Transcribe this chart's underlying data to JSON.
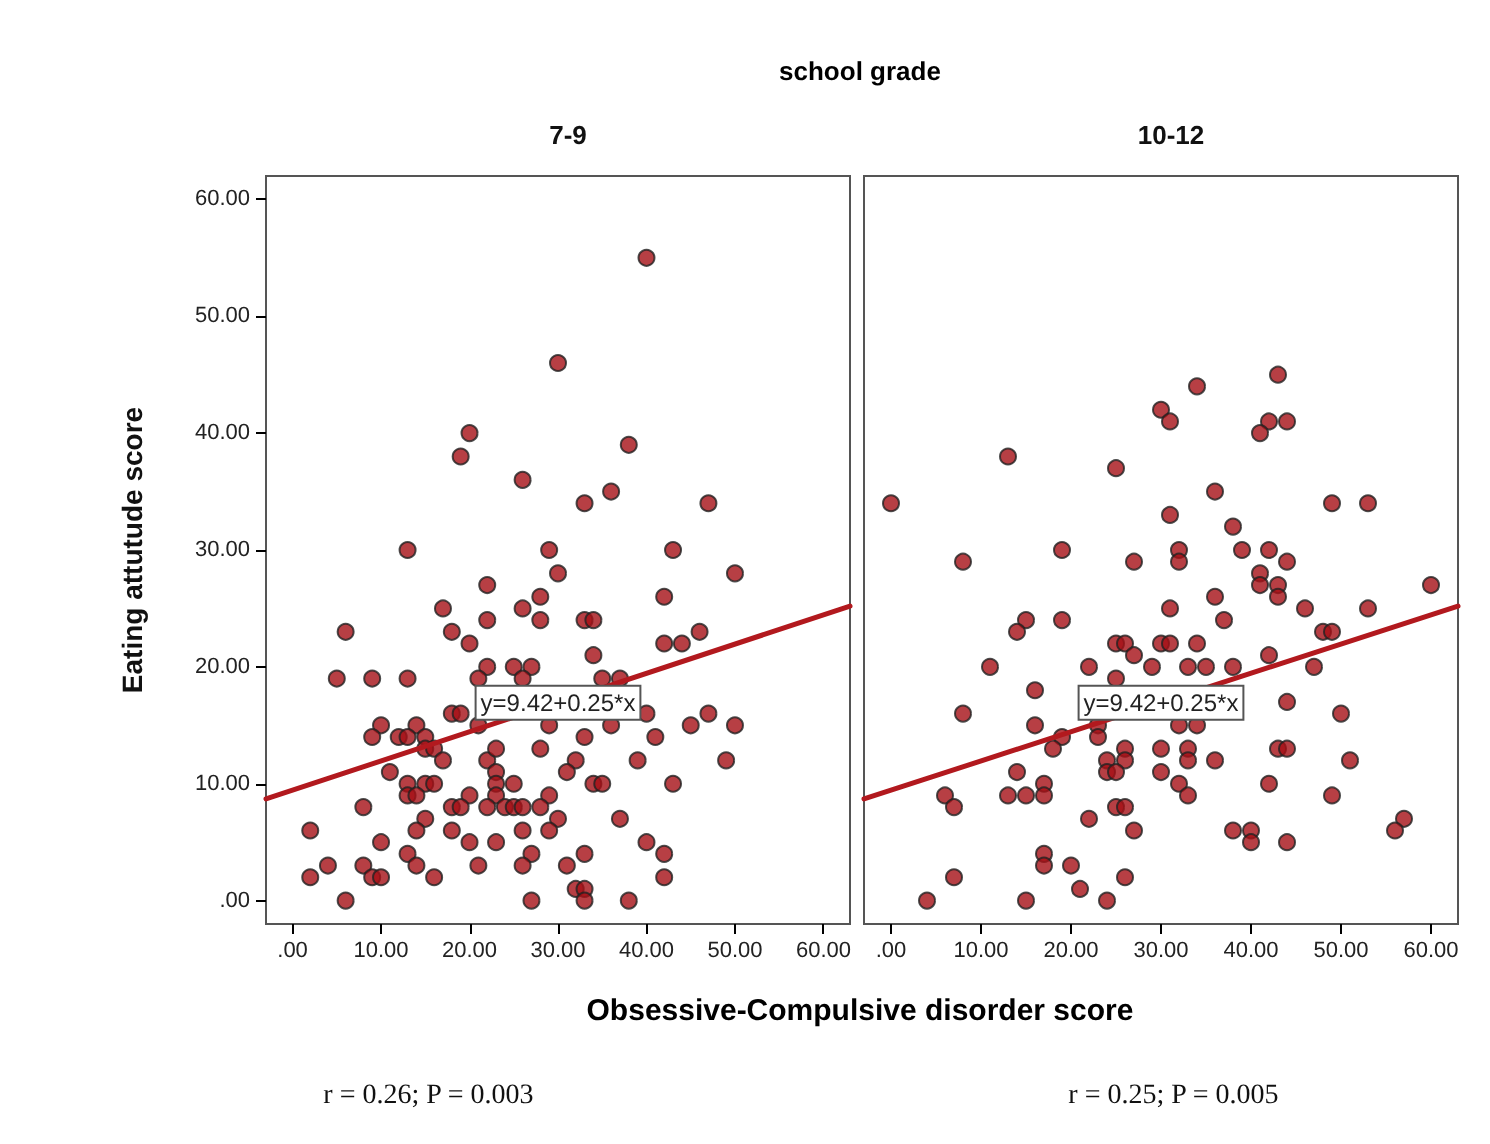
{
  "chart_data": [
    {
      "type": "scatter",
      "title": "school grade",
      "subtitle": "7-9",
      "xlabel": "Obsessive-Compulsive disorder score",
      "ylabel": "Eating attutude score",
      "xlim": [
        -3,
        63
      ],
      "ylim": [
        -2,
        62
      ],
      "xticks": [
        {
          "value": 0,
          "label": ".00"
        },
        {
          "value": 10,
          "label": "10.00"
        },
        {
          "value": 20,
          "label": "20.00"
        },
        {
          "value": 30,
          "label": "30.00"
        },
        {
          "value": 40,
          "label": "40.00"
        },
        {
          "value": 50,
          "label": "50.00"
        },
        {
          "value": 60,
          "label": "60.00"
        }
      ],
      "yticks": [
        {
          "value": 0,
          "label": ".00"
        },
        {
          "value": 10,
          "label": "10.00"
        },
        {
          "value": 20,
          "label": "20.00"
        },
        {
          "value": 30,
          "label": "30.00"
        },
        {
          "value": 40,
          "label": "40.00"
        },
        {
          "value": 50,
          "label": "50.00"
        },
        {
          "value": 60,
          "label": "60.00"
        }
      ],
      "grid": false,
      "marker": "circle",
      "annotations": [
        {
          "text": "y=9.42+0.25*x",
          "x": 30,
          "y": 16.92
        },
        "r = 0.26; P = 0.003"
      ],
      "series": [
        {
          "type": "scatter",
          "color": "#a50f15",
          "x": [
            40,
            30,
            20,
            19,
            38,
            26,
            33,
            36,
            47,
            13,
            29,
            43,
            30,
            50,
            22,
            28,
            42,
            17,
            26,
            6,
            18,
            22,
            28,
            33,
            34,
            42,
            44,
            46,
            20,
            34,
            22,
            25,
            27,
            5,
            9,
            13,
            21,
            26,
            35,
            37,
            18,
            19,
            21,
            29,
            36,
            40,
            10,
            14,
            45,
            47,
            50,
            9,
            12,
            13,
            15,
            15,
            16,
            17,
            22,
            23,
            28,
            33,
            41,
            32,
            39,
            49,
            11,
            31,
            23,
            23,
            23,
            13,
            15,
            16,
            25,
            34,
            35,
            43,
            13,
            14,
            20,
            29,
            8,
            18,
            19,
            22,
            24,
            25,
            26,
            28,
            15,
            30,
            37,
            2,
            14,
            18,
            26,
            29,
            10,
            20,
            23,
            40,
            13,
            27,
            33,
            42,
            4,
            8,
            14,
            21,
            26,
            31,
            2,
            9,
            10,
            16,
            42,
            32,
            33,
            6,
            27,
            33,
            38
          ],
          "values": [
            55,
            46,
            40,
            38,
            39,
            36,
            34,
            35,
            34,
            30,
            30,
            30,
            28,
            28,
            27,
            26,
            26,
            25,
            25,
            23,
            23,
            24,
            24,
            24,
            24,
            22,
            22,
            23,
            22,
            21,
            20,
            20,
            20,
            19,
            19,
            19,
            19,
            19,
            19,
            19,
            16,
            16,
            15,
            15,
            15,
            16,
            15,
            15,
            15,
            16,
            15,
            14,
            14,
            14,
            14,
            13,
            13,
            12,
            12,
            13,
            13,
            14,
            14,
            12,
            12,
            12,
            11,
            11,
            11,
            10,
            9,
            10,
            10,
            10,
            10,
            10,
            10,
            10,
            9,
            9,
            9,
            9,
            8,
            8,
            8,
            8,
            8,
            8,
            8,
            8,
            7,
            7,
            7,
            6,
            6,
            6,
            6,
            6,
            5,
            5,
            5,
            5,
            4,
            4,
            4,
            4,
            3,
            3,
            3,
            3,
            3,
            3,
            2,
            2,
            2,
            2,
            2,
            1,
            1,
            0,
            0,
            0,
            0
          ]
        },
        {
          "type": "line",
          "marker": "none",
          "color": "#b2191e",
          "x": [
            -3,
            63
          ],
          "values": [
            8.7,
            25.2
          ]
        }
      ]
    },
    {
      "type": "scatter",
      "subtitle": "10-12",
      "xlim": [
        -3,
        63
      ],
      "ylim": [
        -2,
        62
      ],
      "xticks": [
        {
          "value": 0,
          "label": ".00"
        },
        {
          "value": 10,
          "label": "10.00"
        },
        {
          "value": 20,
          "label": "20.00"
        },
        {
          "value": 30,
          "label": "30.00"
        },
        {
          "value": 40,
          "label": "40.00"
        },
        {
          "value": 50,
          "label": "50.00"
        },
        {
          "value": 60,
          "label": "60.00"
        }
      ],
      "tick_labels": "x",
      "grid": false,
      "marker": "circle",
      "annotations": [
        {
          "text": "y=9.42+0.25*x",
          "x": 30,
          "y": 16.92
        },
        "r = 0.25; P = 0.005"
      ],
      "series": [
        {
          "type": "scatter",
          "color": "#a50f15",
          "x": [
            43,
            34,
            30,
            31,
            42,
            44,
            41,
            13,
            25,
            36,
            0,
            49,
            53,
            31,
            38,
            8,
            19,
            27,
            32,
            32,
            39,
            42,
            44,
            41,
            41,
            43,
            43,
            60,
            36,
            31,
            46,
            53,
            15,
            14,
            19,
            37,
            48,
            49,
            25,
            26,
            30,
            31,
            34,
            27,
            42,
            11,
            22,
            29,
            33,
            35,
            38,
            47,
            25,
            16,
            44,
            8,
            50,
            16,
            23,
            32,
            34,
            19,
            23,
            18,
            26,
            30,
            33,
            43,
            44,
            24,
            26,
            33,
            36,
            51,
            14,
            24,
            25,
            30,
            17,
            32,
            42,
            6,
            7,
            13,
            15,
            17,
            33,
            49,
            25,
            26,
            22,
            57,
            56,
            27,
            38,
            40,
            40,
            44,
            17,
            17,
            20,
            7,
            26,
            21,
            4,
            15,
            24
          ],
          "values": [
            45,
            44,
            42,
            41,
            41,
            41,
            40,
            38,
            37,
            35,
            34,
            34,
            34,
            33,
            32,
            29,
            30,
            29,
            30,
            29,
            30,
            30,
            29,
            28,
            27,
            27,
            26,
            27,
            26,
            25,
            25,
            25,
            24,
            23,
            24,
            24,
            23,
            23,
            22,
            22,
            22,
            22,
            22,
            21,
            21,
            20,
            20,
            20,
            20,
            20,
            20,
            20,
            19,
            18,
            17,
            16,
            16,
            15,
            15,
            15,
            15,
            14,
            14,
            13,
            13,
            13,
            13,
            13,
            13,
            12,
            12,
            12,
            12,
            12,
            11,
            11,
            11,
            11,
            10,
            10,
            10,
            9,
            8,
            9,
            9,
            9,
            9,
            9,
            8,
            8,
            7,
            7,
            6,
            6,
            6,
            6,
            5,
            5,
            4,
            3,
            3,
            2,
            2,
            1,
            0,
            0,
            0
          ]
        },
        {
          "type": "line",
          "marker": "none",
          "color": "#b2191e",
          "x": [
            -3,
            63
          ],
          "values": [
            8.7,
            25.2
          ]
        }
      ]
    }
  ]
}
